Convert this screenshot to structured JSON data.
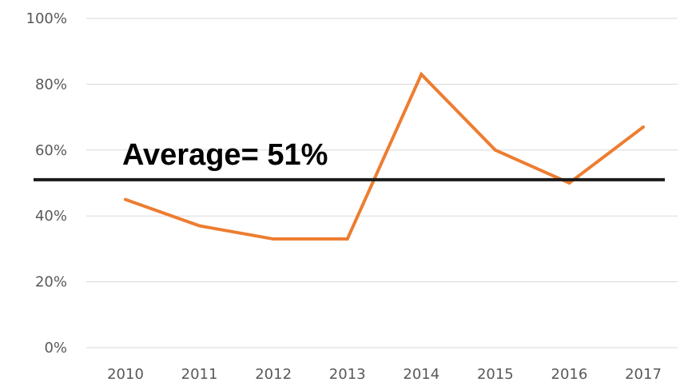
{
  "chart_data": {
    "type": "line",
    "title": "",
    "xlabel": "",
    "ylabel": "",
    "categories": [
      "2010",
      "2011",
      "2012",
      "2013",
      "2014",
      "2015",
      "2016",
      "2017"
    ],
    "series": [
      {
        "values": [
          45,
          37,
          33,
          33,
          83,
          60,
          50,
          67
        ],
        "color": "#ED7D31"
      }
    ],
    "ylim": [
      0,
      100
    ],
    "y_ticks": [
      0,
      20,
      40,
      60,
      80,
      100
    ],
    "y_tick_labels": [
      "0%",
      "20%",
      "40%",
      "60%",
      "80%",
      "100%"
    ],
    "grid": true,
    "legend": "none",
    "reference_line": {
      "value": 51,
      "label": "Average= 51%",
      "color": "#1a1a1a"
    }
  }
}
